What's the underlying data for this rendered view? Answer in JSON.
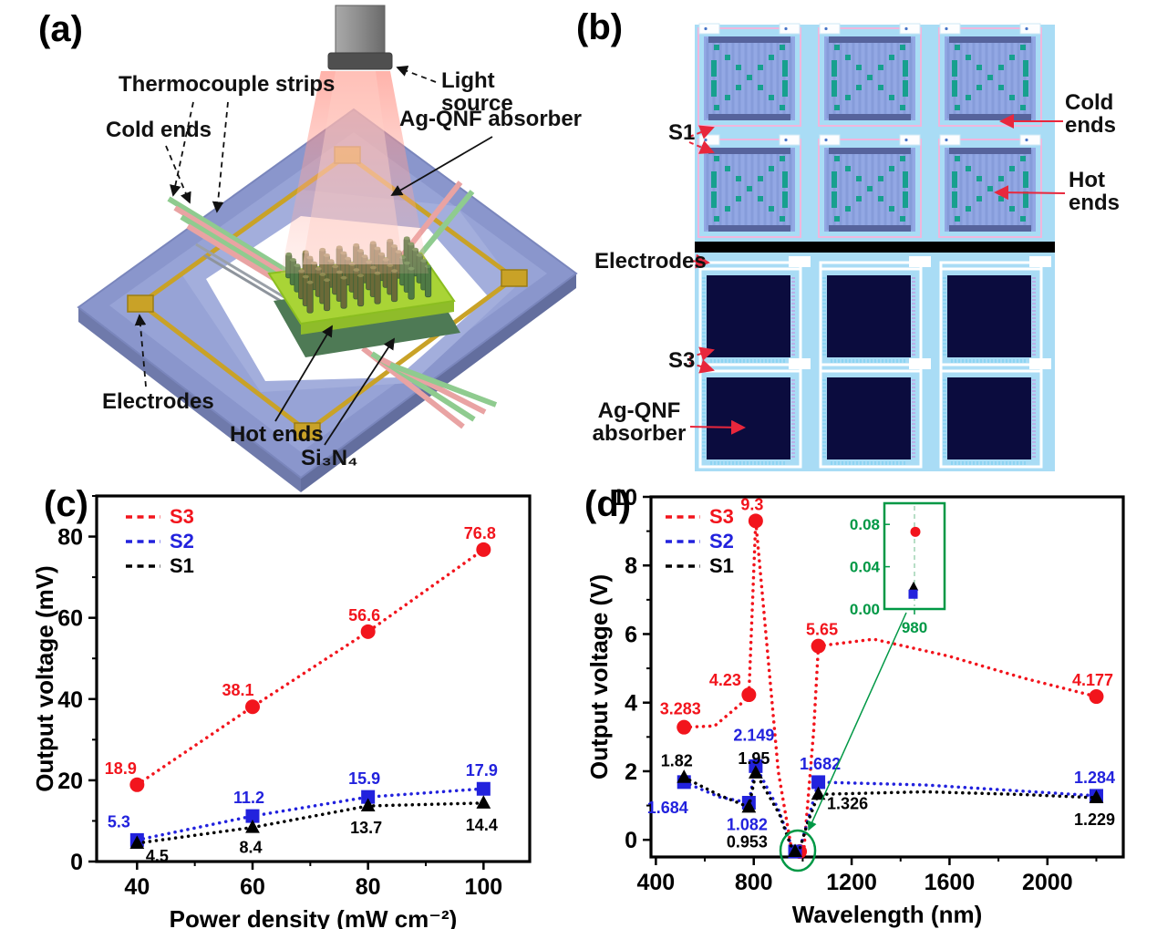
{
  "panels": {
    "a": "(a)",
    "b": "(b)",
    "c": "(c)",
    "d": "(d)"
  },
  "panel_a": {
    "labels": {
      "thermocouple_strips": "Thermocouple strips",
      "cold_ends": "Cold ends",
      "light_source": "Light source",
      "absorber": "Ag-QNF absorber",
      "electrodes": "Electrodes",
      "hot_ends": "Hot ends",
      "si3n4": "Si₃N₄"
    }
  },
  "panel_b": {
    "labels": {
      "s1": "S1",
      "cold_ends": "Cold ends",
      "hot_ends": "Hot ends",
      "electrodes": "Electrodes",
      "s3": "S3",
      "absorber": "Ag-QNF absorber"
    }
  },
  "colors": {
    "red": "#f2151d",
    "blue": "#2222dd",
    "black": "#000000",
    "green": "#009845",
    "arrow_red": "#e8273c"
  },
  "chart_data": [
    {
      "id": "c",
      "type": "line",
      "xlabel": "Power density (mW cm⁻²)",
      "ylabel": "Output voltage (mV)",
      "xlim": [
        33,
        108
      ],
      "ylim": [
        0,
        90
      ],
      "xticks": [
        40,
        60,
        80,
        100
      ],
      "xminor": [
        50,
        70,
        90
      ],
      "yticks": [
        0,
        20,
        40,
        60,
        80
      ],
      "yminor": [
        10,
        30,
        50,
        70,
        90
      ],
      "legend": [
        "S3",
        "S2",
        "S1"
      ],
      "legend_position": "top-left",
      "grid": false,
      "series": [
        {
          "name": "S3",
          "color": "#f2151d",
          "marker": "circle",
          "x": [
            40,
            60,
            80,
            100
          ],
          "y": [
            18.9,
            38.1,
            56.6,
            76.8
          ],
          "labels": [
            "18.9",
            "38.1",
            "56.6",
            "76.8"
          ],
          "label_offsets": [
            [
              -18,
              -12
            ],
            [
              -16,
              -12
            ],
            [
              -4,
              -12
            ],
            [
              -4,
              -12
            ]
          ]
        },
        {
          "name": "S2",
          "color": "#2222dd",
          "marker": "square",
          "x": [
            40,
            60,
            80,
            100
          ],
          "y": [
            5.3,
            11.2,
            15.9,
            17.9
          ],
          "labels": [
            "5.3",
            "11.2",
            "15.9",
            "17.9"
          ],
          "label_offsets": [
            [
              -20,
              -14
            ],
            [
              -4,
              -14
            ],
            [
              -4,
              -14
            ],
            [
              -2,
              -14
            ]
          ]
        },
        {
          "name": "S1",
          "color": "#000000",
          "marker": "triangle",
          "x": [
            40,
            60,
            80,
            100
          ],
          "y": [
            4.5,
            8.4,
            13.7,
            14.4
          ],
          "labels": [
            "4.5",
            "8.4",
            "13.7",
            "14.4"
          ],
          "label_offsets": [
            [
              22,
              20
            ],
            [
              -2,
              28
            ],
            [
              -2,
              30
            ],
            [
              -2,
              30
            ]
          ]
        }
      ]
    },
    {
      "id": "d",
      "type": "line",
      "xlabel": "Wavelength (nm)",
      "ylabel": "Output voltage (V)",
      "xlim": [
        380,
        2310
      ],
      "ylim": [
        -0.5,
        10
      ],
      "xticks": [
        400,
        800,
        1200,
        1600,
        2000
      ],
      "xminor": [
        600,
        1000,
        1400,
        1800,
        2200
      ],
      "yticks": [
        0,
        2,
        4,
        6,
        8,
        10
      ],
      "yminor": [
        1,
        3,
        5,
        7,
        9
      ],
      "legend": [
        "S3",
        "S2",
        "S1"
      ],
      "legend_position": "top-left",
      "grid": false,
      "series": [
        {
          "name": "S3",
          "color": "#f2141c",
          "marker": "circle",
          "clamp_index": 3,
          "x": [
            515,
            780,
            808,
            980,
            1064,
            2200
          ],
          "y": [
            3.283,
            4.23,
            9.3,
            0.073,
            5.65,
            4.177
          ],
          "labels": [
            "3.283",
            "4.23",
            "9.3",
            "",
            "5.65",
            "4.177"
          ],
          "label_offsets": [
            [
              -4,
              -14
            ],
            [
              -26,
              -10
            ],
            [
              -4,
              -12
            ],
            [
              0,
              0
            ],
            [
              4,
              -12
            ],
            [
              -4,
              -12
            ]
          ],
          "curve": [
            [
              515,
              3.283
            ],
            [
              640,
              3.32
            ],
            [
              745,
              3.95
            ],
            [
              780,
              4.23
            ],
            [
              808,
              9.3
            ],
            [
              900,
              2.0
            ],
            [
              955,
              -0.3
            ],
            [
              980,
              -0.45
            ],
            [
              1005,
              -0.3
            ],
            [
              1045,
              3.2
            ],
            [
              1064,
              5.65
            ],
            [
              1290,
              5.85
            ],
            [
              1600,
              5.35
            ],
            [
              1900,
              4.72
            ],
            [
              2200,
              4.177
            ]
          ]
        },
        {
          "name": "S2",
          "color": "#2222dd",
          "marker": "square",
          "clamp_index": 3,
          "x": [
            515,
            780,
            808,
            980,
            1064,
            2200
          ],
          "y": [
            1.684,
            1.082,
            2.149,
            0.014,
            1.682,
            1.284
          ],
          "labels": [
            "1.684",
            "1.082",
            "2.149",
            "",
            "1.682",
            "1.284"
          ],
          "label_offsets": [
            [
              -18,
              34
            ],
            [
              -2,
              30
            ],
            [
              -2,
              -28
            ],
            [
              0,
              0
            ],
            [
              2,
              -14
            ],
            [
              -2,
              -14
            ]
          ],
          "curve": [
            [
              515,
              1.684
            ],
            [
              660,
              1.25
            ],
            [
              780,
              1.082
            ],
            [
              808,
              2.149
            ],
            [
              900,
              0.9
            ],
            [
              950,
              -0.1
            ],
            [
              980,
              -0.45
            ],
            [
              1015,
              0.4
            ],
            [
              1064,
              1.682
            ],
            [
              1500,
              1.6
            ],
            [
              1900,
              1.42
            ],
            [
              2200,
              1.284
            ]
          ]
        },
        {
          "name": "S1",
          "color": "#000000",
          "marker": "triangle",
          "clamp_index": 3,
          "x": [
            515,
            780,
            808,
            980,
            1064,
            2200
          ],
          "y": [
            1.82,
            0.953,
            1.95,
            0.021,
            1.326,
            1.229
          ],
          "labels": [
            "1.82",
            "0.953",
            "1.95",
            "",
            "1.326",
            "1.229"
          ],
          "label_offsets": [
            [
              -8,
              -12
            ],
            [
              -2,
              44
            ],
            [
              -2,
              -10
            ],
            [
              0,
              0
            ],
            [
              32,
              16
            ],
            [
              -2,
              30
            ]
          ],
          "curve": [
            [
              515,
              1.82
            ],
            [
              660,
              1.3
            ],
            [
              780,
              0.953
            ],
            [
              808,
              1.95
            ],
            [
              905,
              0.75
            ],
            [
              950,
              -0.15
            ],
            [
              980,
              -0.45
            ],
            [
              1020,
              0.5
            ],
            [
              1064,
              1.326
            ],
            [
              1500,
              1.4
            ],
            [
              1900,
              1.32
            ],
            [
              2200,
              1.229
            ]
          ]
        }
      ],
      "dip": {
        "x": 980,
        "circle_color": "#009845"
      },
      "inset": {
        "color": "#009845",
        "ylim": [
          0,
          0.1
        ],
        "ytick_labels": [
          "0.08",
          "0.04",
          "0.00"
        ],
        "ytick_values": [
          0.08,
          0.04,
          0.0
        ],
        "xtick_label": "980",
        "points": [
          {
            "series": "S3",
            "value": 0.073
          },
          {
            "series": "S1",
            "value": 0.021
          },
          {
            "series": "S2",
            "value": 0.014
          }
        ]
      }
    }
  ]
}
